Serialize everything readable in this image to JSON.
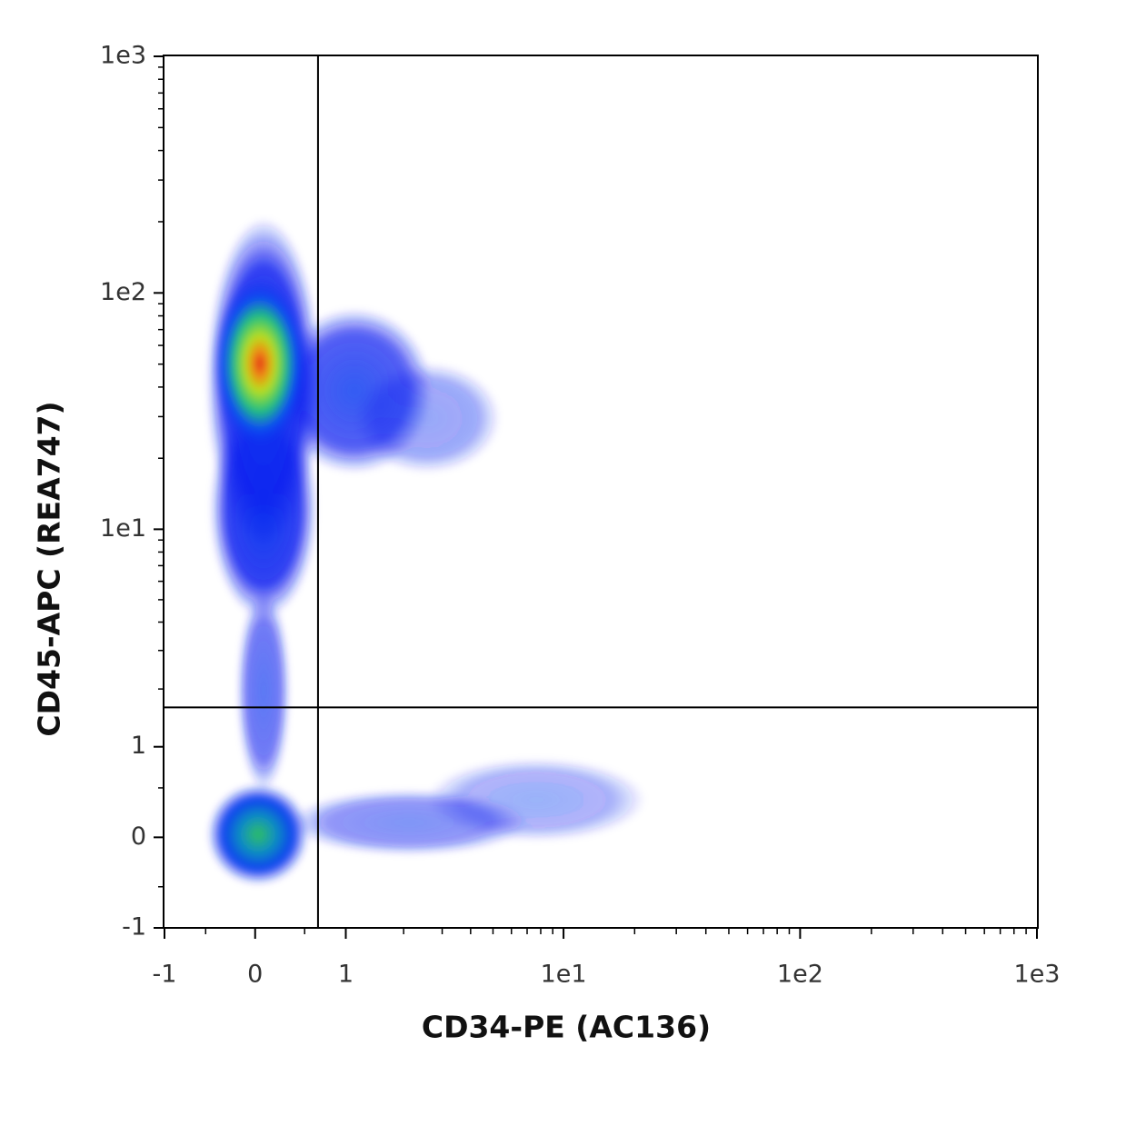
{
  "chart_data": {
    "type": "density-scatter",
    "x_label": "CD34-PE (AC136)",
    "y_label": "CD45-APC (REA747)",
    "scale": "asinh",
    "xlim": [
      -1,
      1000
    ],
    "ylim": [
      -1,
      1000
    ],
    "xticks": [
      -1,
      0,
      1,
      {
        "value": 10,
        "label": "1e1"
      },
      {
        "value": 100,
        "label": "1e2"
      },
      {
        "value": 1000,
        "label": "1e3"
      }
    ],
    "yticks": [
      -1,
      0,
      1,
      {
        "value": 10,
        "label": "1e1"
      },
      {
        "value": 100,
        "label": "1e2"
      },
      {
        "value": 1000,
        "label": "1e3"
      }
    ],
    "xminorticks": [
      -0.5,
      0.5,
      2,
      3,
      4,
      5,
      6,
      7,
      8,
      9,
      20,
      30,
      40,
      50,
      60,
      70,
      80,
      90,
      200,
      300,
      400,
      500,
      600,
      700,
      800,
      900
    ],
    "yminorticks": [
      -0.5,
      0.5,
      2,
      3,
      4,
      5,
      6,
      7,
      8,
      9,
      20,
      30,
      40,
      50,
      60,
      70,
      80,
      90,
      200,
      300,
      400,
      500,
      600,
      700,
      800,
      900
    ],
    "gate_x": 0.65,
    "gate_y": 1.63
  }
}
